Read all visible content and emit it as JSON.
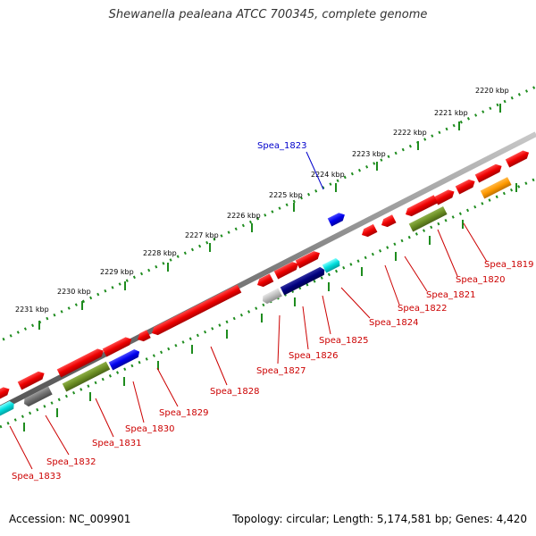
{
  "title": "Shewanella pealeana ATCC 700345, complete genome",
  "accession": "Accession: NC_009901",
  "topology": "Topology: circular; Length: 5,174,581 bp; Genes: 4,420",
  "colors": {
    "backbone": "#808080",
    "ruler": "#1e8c1e",
    "label_red": "#cc0000",
    "label_blue": "#0000cc"
  },
  "ticks": [
    "2220 kbp",
    "2221 kbp",
    "2222 kbp",
    "2223 kbp",
    "2224 kbp",
    "2225 kbp",
    "2226 kbp",
    "2227 kbp",
    "2228 kbp",
    "2229 kbp",
    "2230 kbp",
    "2231 kbp"
  ],
  "gene_labels": [
    {
      "name": "Spea_1819",
      "color": "red"
    },
    {
      "name": "Spea_1820",
      "color": "red"
    },
    {
      "name": "Spea_1821",
      "color": "red"
    },
    {
      "name": "Spea_1822",
      "color": "red"
    },
    {
      "name": "Spea_1823",
      "color": "blue"
    },
    {
      "name": "Spea_1824",
      "color": "red"
    },
    {
      "name": "Spea_1825",
      "color": "red"
    },
    {
      "name": "Spea_1826",
      "color": "red"
    },
    {
      "name": "Spea_1827",
      "color": "red"
    },
    {
      "name": "Spea_1828",
      "color": "red"
    },
    {
      "name": "Spea_1829",
      "color": "red"
    },
    {
      "name": "Spea_1830",
      "color": "red"
    },
    {
      "name": "Spea_1831",
      "color": "red"
    },
    {
      "name": "Spea_1832",
      "color": "red"
    },
    {
      "name": "Spea_1833",
      "color": "red"
    }
  ]
}
